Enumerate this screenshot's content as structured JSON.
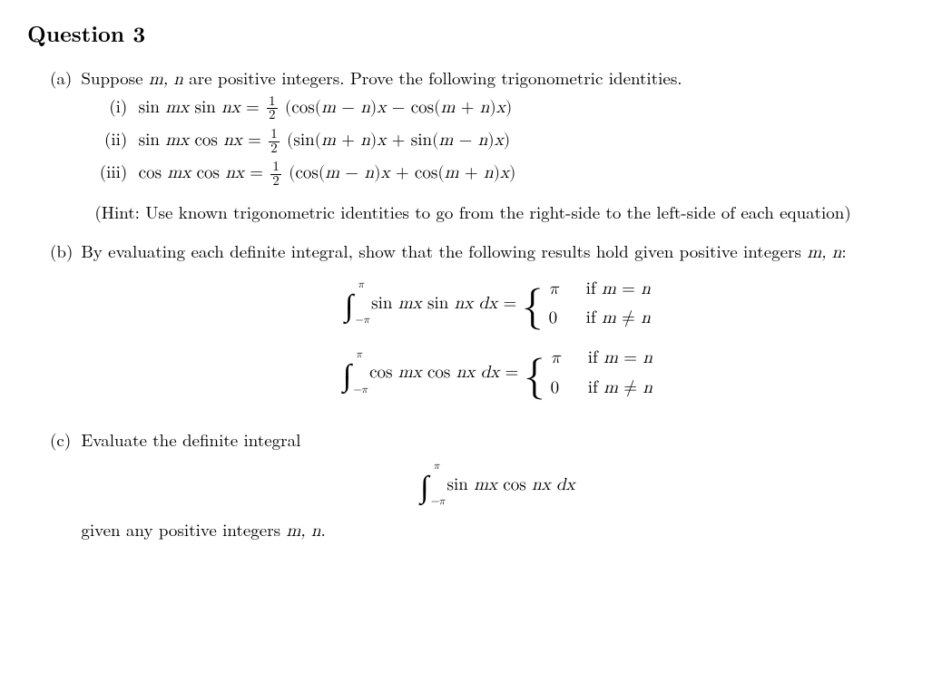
{
  "title": "Question 3",
  "part_a": {
    "label": "(a)",
    "intro": "Suppose m, n are positive integers. Prove the following trigonometric identities.",
    "items": [
      {
        "label": "(i)",
        "lhs": "sin mx sin nx",
        "rhs_coef_num": "1",
        "rhs_coef_den": "2",
        "rhs_body": "(cos(m − n)x − cos(m + n)x)"
      },
      {
        "label": "(ii)",
        "lhs": "sin mx cos nx",
        "rhs_coef_num": "1",
        "rhs_coef_den": "2",
        "rhs_body": "(sin(m + n)x + sin(m − n)x)"
      },
      {
        "label": "(iii)",
        "lhs": "cos mx cos nx",
        "rhs_coef_num": "1",
        "rhs_coef_den": "2",
        "rhs_body": "(cos(m − n)x + cos(m + n)x)"
      }
    ],
    "hint": "(Hint: Use known trigonometric identities to go from the right-side to the left-side of each equation)"
  },
  "part_b": {
    "label": "(b)",
    "intro": "By evaluating each definite integral, show that the following results hold given positive integers m, n:",
    "integrals": [
      {
        "integrand": "sin mx sin nx dx",
        "lower": "−π",
        "upper": "π",
        "case1_val": "π",
        "case1_cond": "if m = n",
        "case2_val": "0",
        "case2_cond": "if m ≠ n"
      },
      {
        "integrand": "cos mx cos nx dx",
        "lower": "−π",
        "upper": "π",
        "case1_val": "π",
        "case1_cond": "if m = n",
        "case2_val": "0",
        "case2_cond": "if m ≠ n"
      }
    ]
  },
  "part_c": {
    "label": "(c)",
    "intro": "Evaluate the definite integral",
    "integral": {
      "integrand": "sin mx cos nx dx",
      "lower": "−π",
      "upper": "π"
    },
    "outro": "given any positive integers m, n."
  },
  "colors": {
    "text": "#000000",
    "background": "#ffffff"
  },
  "typography": {
    "base_fontsize_pt": 14,
    "title_fontsize_pt": 18,
    "math_family": "Computer Modern / Latin Modern"
  }
}
